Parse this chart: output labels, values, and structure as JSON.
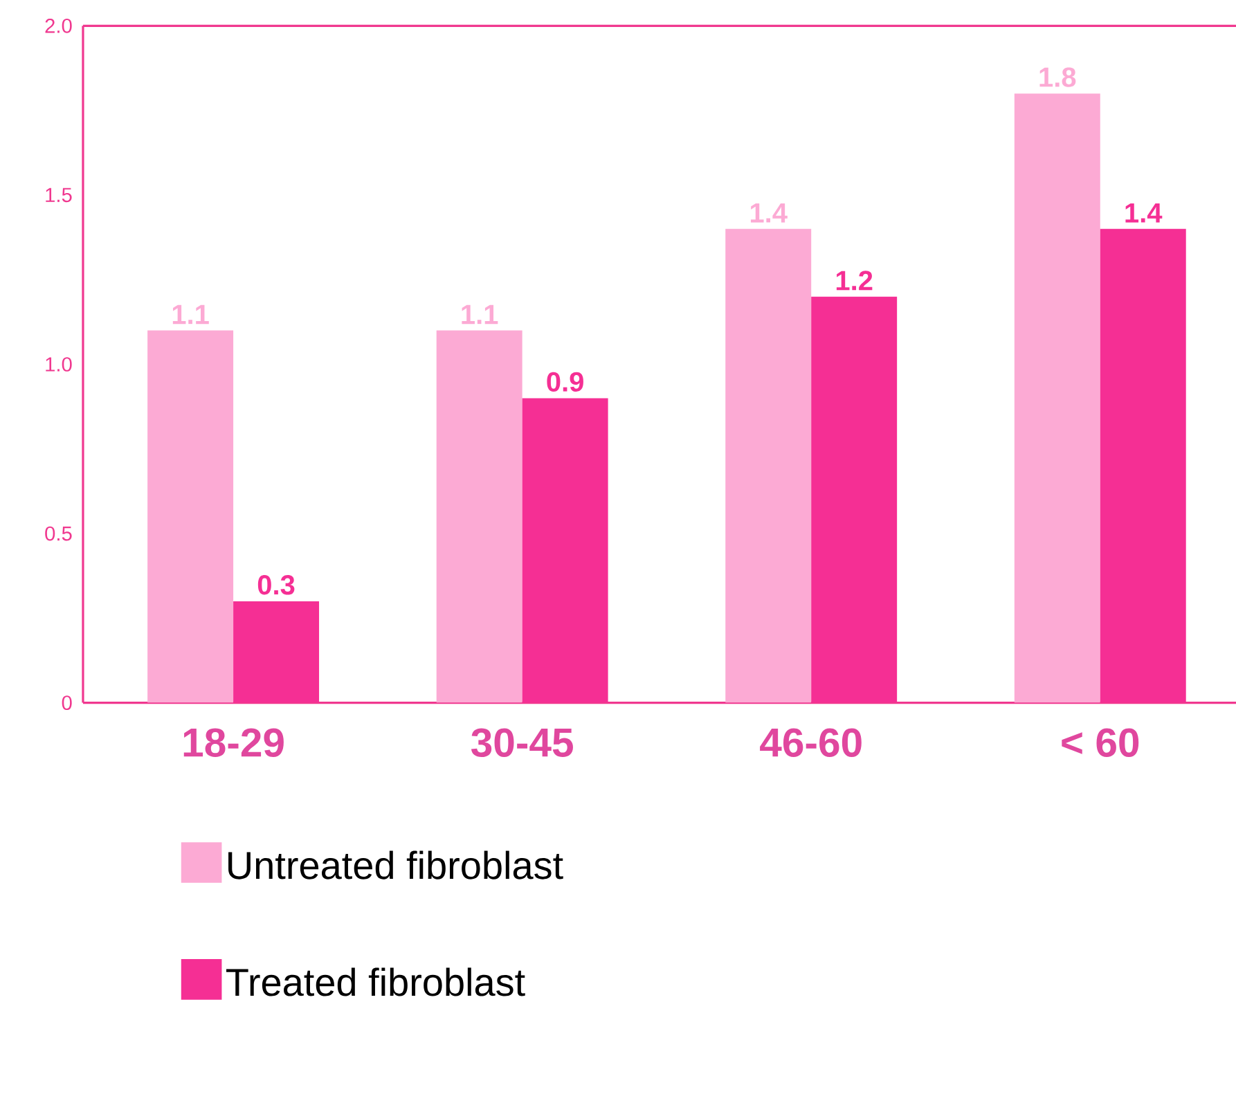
{
  "chart_data": {
    "type": "bar",
    "categories": [
      "18-29",
      "30-45",
      "46-60",
      "< 60"
    ],
    "series": [
      {
        "name": "Untreated fibroblast",
        "color": "#fcaad4",
        "values": [
          1.1,
          1.1,
          1.4,
          1.8
        ]
      },
      {
        "name": "Treated fibroblast",
        "color": "#f52f94",
        "values": [
          0.3,
          0.9,
          1.2,
          1.4
        ]
      }
    ],
    "ylim": [
      0,
      2.0
    ],
    "yticks": [
      0,
      {
        "value": 0.5,
        "label": "0.5"
      },
      {
        "value": 1.0,
        "label": "1.0"
      },
      {
        "value": 1.5,
        "label": "1.5"
      },
      {
        "value": 2.0,
        "label": "2.0"
      }
    ],
    "data_labels": true,
    "grid": false,
    "legend": "bottom"
  }
}
